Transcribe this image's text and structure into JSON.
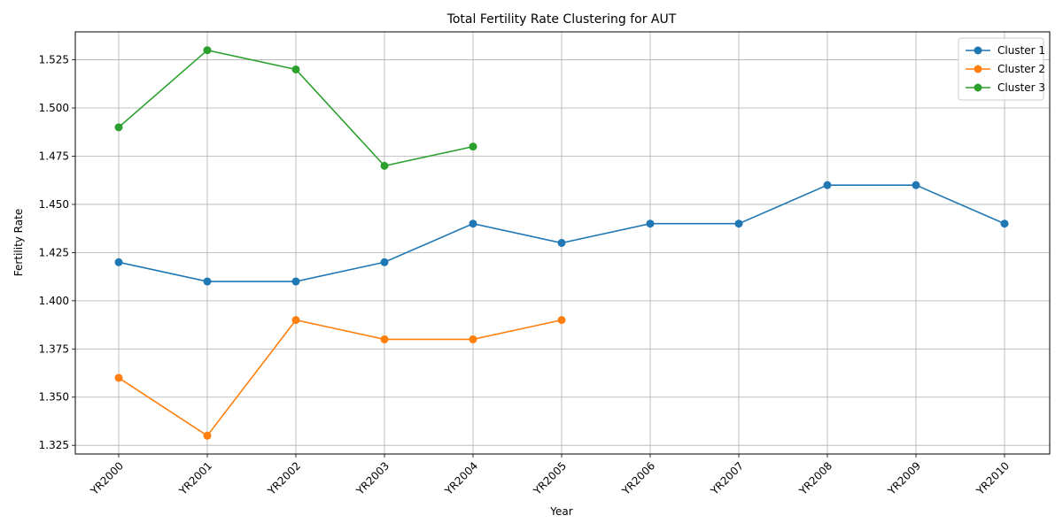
{
  "chart_data": {
    "type": "line",
    "title": "Total Fertility Rate Clustering for AUT",
    "xlabel": "Year",
    "ylabel": "Fertility Rate",
    "categories": [
      "YR2000",
      "YR2001",
      "YR2002",
      "YR2003",
      "YR2004",
      "YR2005",
      "YR2006",
      "YR2007",
      "YR2008",
      "YR2009",
      "YR2010"
    ],
    "yticks": [
      "1.325",
      "1.350",
      "1.375",
      "1.400",
      "1.425",
      "1.450",
      "1.475",
      "1.500",
      "1.525"
    ],
    "ylim": [
      1.3205,
      1.5395
    ],
    "grid": true,
    "legend_position": "top-right",
    "series": [
      {
        "name": "Cluster 1",
        "color": "#1f77b4",
        "x": [
          "YR2000",
          "YR2001",
          "YR2002",
          "YR2003",
          "YR2004",
          "YR2005",
          "YR2006",
          "YR2007",
          "YR2008",
          "YR2009",
          "YR2010"
        ],
        "values": [
          1.42,
          1.41,
          1.41,
          1.42,
          1.44,
          1.43,
          1.44,
          1.44,
          1.46,
          1.46,
          1.44
        ]
      },
      {
        "name": "Cluster 2",
        "color": "#ff7f0e",
        "x": [
          "YR2000",
          "YR2001",
          "YR2002",
          "YR2003",
          "YR2004",
          "YR2005"
        ],
        "values": [
          1.36,
          1.33,
          1.39,
          1.38,
          1.38,
          1.39
        ]
      },
      {
        "name": "Cluster 3",
        "color": "#2ca02c",
        "x": [
          "YR2000",
          "YR2001",
          "YR2002",
          "YR2003",
          "YR2004"
        ],
        "values": [
          1.49,
          1.53,
          1.52,
          1.47,
          1.48
        ]
      }
    ]
  }
}
